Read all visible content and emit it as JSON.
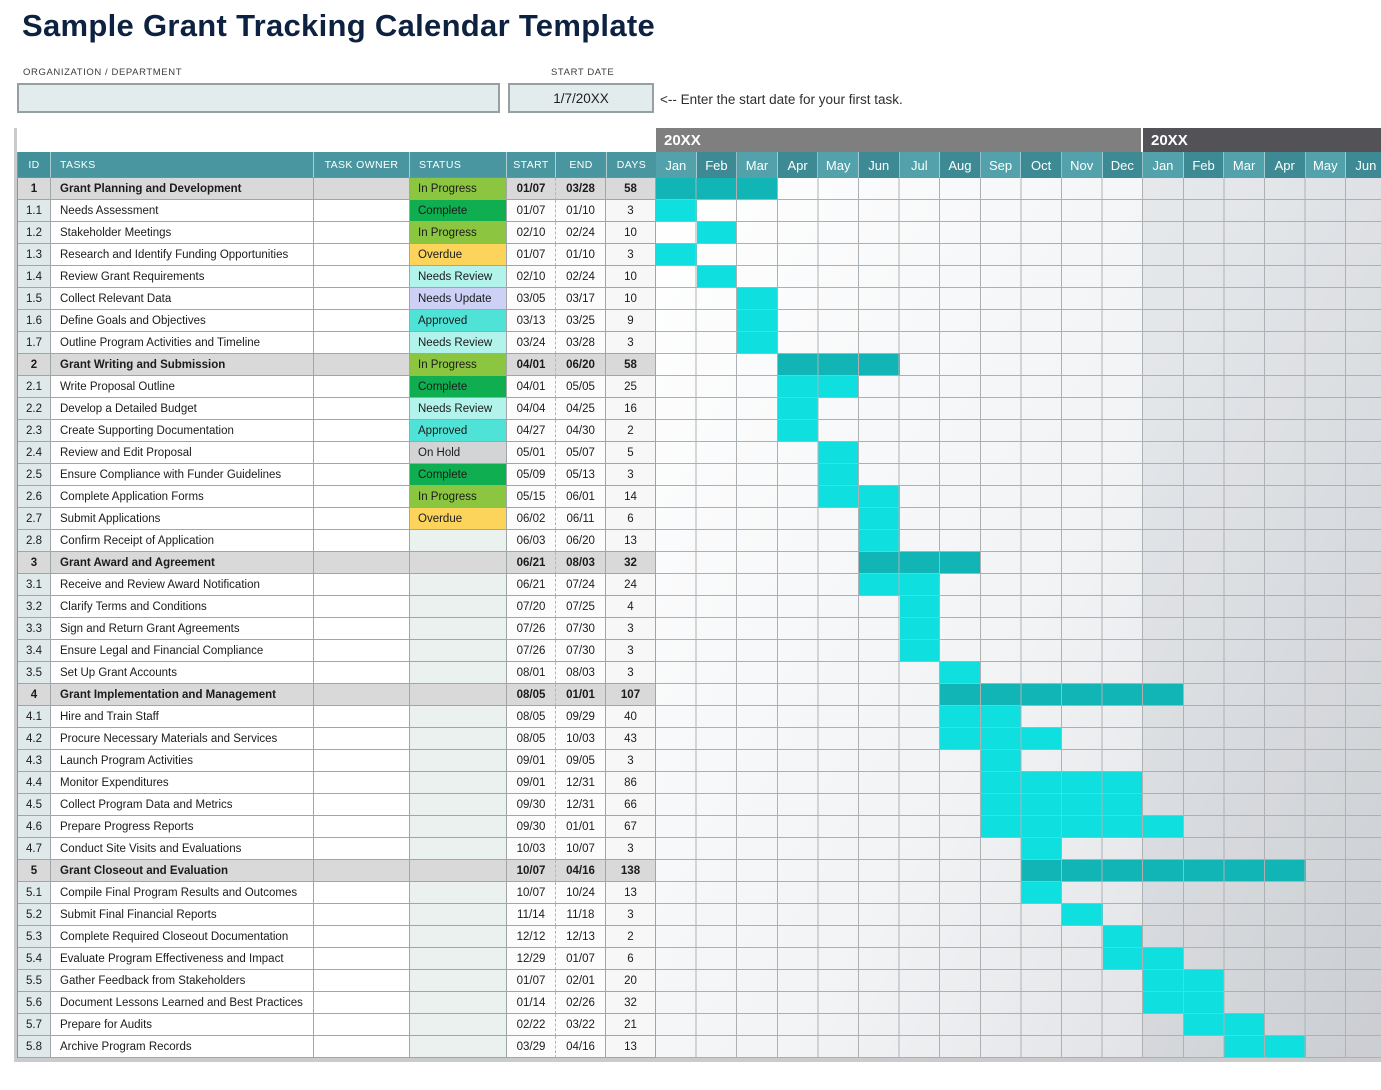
{
  "title": "Sample Grant Tracking Calendar Template",
  "form": {
    "org_label": "ORGANIZATION / DEPARTMENT",
    "org_value": "",
    "start_date_label": "START DATE",
    "start_date_value": "1/7/20XX",
    "hint": "<-- Enter the start date for your first task."
  },
  "table_headers": {
    "id": "ID",
    "tasks": "TASKS",
    "owner": "TASK OWNER",
    "status": "STATUS",
    "start": "START",
    "end": "END",
    "days": "DAYS"
  },
  "years": [
    {
      "label": "20XX",
      "months": [
        "Jan",
        "Feb",
        "Mar",
        "Apr",
        "May",
        "Jun",
        "Jul",
        "Aug",
        "Sep",
        "Oct",
        "Nov",
        "Dec"
      ]
    },
    {
      "label": "20XX",
      "months": [
        "Jan",
        "Feb",
        "Mar",
        "Apr",
        "May",
        "Jun"
      ]
    }
  ],
  "status_colors": {
    "In Progress": "#8cc640",
    "Complete": "#0fae50",
    "Overdue": "#fcd45c",
    "Needs Review": "#b2f4ec",
    "Needs Update": "#ccd1f5",
    "Approved": "#4fe3d7",
    "On Hold": "#d2d4d6"
  },
  "colors": {
    "section_bar": "#12b5b5",
    "task_bar": "#0fdfdf",
    "header_teal": "#4a96a0",
    "year1_band": "#7f7f7f",
    "year2_band": "#535357",
    "section_row": "#d9d9d9",
    "title_navy": "#0d2240"
  },
  "rows": [
    {
      "id": "1",
      "task": "Grant Planning and Development",
      "owner": "",
      "status": "In Progress",
      "start": "01/07",
      "end": "03/28",
      "days": "58",
      "section": true,
      "bar_months": [
        0,
        3
      ]
    },
    {
      "id": "1.1",
      "task": "Needs Assessment",
      "owner": "",
      "status": "Complete",
      "start": "01/07",
      "end": "01/10",
      "days": "3",
      "section": false,
      "bar_months": [
        0,
        1
      ]
    },
    {
      "id": "1.2",
      "task": "Stakeholder Meetings",
      "owner": "",
      "status": "In Progress",
      "start": "02/10",
      "end": "02/24",
      "days": "10",
      "section": false,
      "bar_months": [
        1,
        1
      ]
    },
    {
      "id": "1.3",
      "task": "Research and Identify Funding Opportunities",
      "owner": "",
      "status": "Overdue",
      "start": "01/07",
      "end": "01/10",
      "days": "3",
      "section": false,
      "bar_months": [
        0,
        1
      ]
    },
    {
      "id": "1.4",
      "task": "Review Grant Requirements",
      "owner": "",
      "status": "Needs Review",
      "start": "02/10",
      "end": "02/24",
      "days": "10",
      "section": false,
      "bar_months": [
        1,
        1
      ]
    },
    {
      "id": "1.5",
      "task": "Collect Relevant Data",
      "owner": "",
      "status": "Needs Update",
      "start": "03/05",
      "end": "03/17",
      "days": "10",
      "section": false,
      "bar_months": [
        2,
        1
      ]
    },
    {
      "id": "1.6",
      "task": "Define Goals and Objectives",
      "owner": "",
      "status": "Approved",
      "start": "03/13",
      "end": "03/25",
      "days": "9",
      "section": false,
      "bar_months": [
        2,
        1
      ]
    },
    {
      "id": "1.7",
      "task": "Outline Program Activities and Timeline",
      "owner": "",
      "status": "Needs Review",
      "start": "03/24",
      "end": "03/28",
      "days": "3",
      "section": false,
      "bar_months": [
        2,
        1
      ]
    },
    {
      "id": "2",
      "task": "Grant Writing and Submission",
      "owner": "",
      "status": "In Progress",
      "start": "04/01",
      "end": "06/20",
      "days": "58",
      "section": true,
      "bar_months": [
        3,
        3
      ]
    },
    {
      "id": "2.1",
      "task": "Write Proposal Outline",
      "owner": "",
      "status": "Complete",
      "start": "04/01",
      "end": "05/05",
      "days": "25",
      "section": false,
      "bar_months": [
        3,
        2
      ]
    },
    {
      "id": "2.2",
      "task": "Develop a Detailed Budget",
      "owner": "",
      "status": "Needs Review",
      "start": "04/04",
      "end": "04/25",
      "days": "16",
      "section": false,
      "bar_months": [
        3,
        1
      ]
    },
    {
      "id": "2.3",
      "task": "Create Supporting Documentation",
      "owner": "",
      "status": "Approved",
      "start": "04/27",
      "end": "04/30",
      "days": "2",
      "section": false,
      "bar_months": [
        3,
        1
      ]
    },
    {
      "id": "2.4",
      "task": "Review and Edit Proposal",
      "owner": "",
      "status": "On Hold",
      "start": "05/01",
      "end": "05/07",
      "days": "5",
      "section": false,
      "bar_months": [
        4,
        1
      ]
    },
    {
      "id": "2.5",
      "task": "Ensure Compliance with Funder Guidelines",
      "owner": "",
      "status": "Complete",
      "start": "05/09",
      "end": "05/13",
      "days": "3",
      "section": false,
      "bar_months": [
        4,
        1
      ]
    },
    {
      "id": "2.6",
      "task": "Complete Application Forms",
      "owner": "",
      "status": "In Progress",
      "start": "05/15",
      "end": "06/01",
      "days": "14",
      "section": false,
      "bar_months": [
        4,
        2
      ]
    },
    {
      "id": "2.7",
      "task": "Submit Applications",
      "owner": "",
      "status": "Overdue",
      "start": "06/02",
      "end": "06/11",
      "days": "6",
      "section": false,
      "bar_months": [
        5,
        1
      ]
    },
    {
      "id": "2.8",
      "task": "Confirm Receipt of Application",
      "owner": "",
      "status": "",
      "start": "06/03",
      "end": "06/20",
      "days": "13",
      "section": false,
      "bar_months": [
        5,
        1
      ]
    },
    {
      "id": "3",
      "task": "Grant Award and Agreement",
      "owner": "",
      "status": "",
      "start": "06/21",
      "end": "08/03",
      "days": "32",
      "section": true,
      "bar_months": [
        5,
        3
      ]
    },
    {
      "id": "3.1",
      "task": "Receive and Review Award Notification",
      "owner": "",
      "status": "",
      "start": "06/21",
      "end": "07/24",
      "days": "24",
      "section": false,
      "bar_months": [
        5,
        2
      ]
    },
    {
      "id": "3.2",
      "task": "Clarify Terms and Conditions",
      "owner": "",
      "status": "",
      "start": "07/20",
      "end": "07/25",
      "days": "4",
      "section": false,
      "bar_months": [
        6,
        1
      ]
    },
    {
      "id": "3.3",
      "task": "Sign and Return Grant Agreements",
      "owner": "",
      "status": "",
      "start": "07/26",
      "end": "07/30",
      "days": "3",
      "section": false,
      "bar_months": [
        6,
        1
      ]
    },
    {
      "id": "3.4",
      "task": "Ensure Legal and Financial Compliance",
      "owner": "",
      "status": "",
      "start": "07/26",
      "end": "07/30",
      "days": "3",
      "section": false,
      "bar_months": [
        6,
        1
      ]
    },
    {
      "id": "3.5",
      "task": "Set Up Grant Accounts",
      "owner": "",
      "status": "",
      "start": "08/01",
      "end": "08/03",
      "days": "3",
      "section": false,
      "bar_months": [
        7,
        1
      ]
    },
    {
      "id": "4",
      "task": "Grant Implementation and Management",
      "owner": "",
      "status": "",
      "start": "08/05",
      "end": "01/01",
      "days": "107",
      "section": true,
      "bar_months": [
        7,
        6
      ]
    },
    {
      "id": "4.1",
      "task": "Hire and Train Staff",
      "owner": "",
      "status": "",
      "start": "08/05",
      "end": "09/29",
      "days": "40",
      "section": false,
      "bar_months": [
        7,
        2
      ]
    },
    {
      "id": "4.2",
      "task": "Procure Necessary Materials and Services",
      "owner": "",
      "status": "",
      "start": "08/05",
      "end": "10/03",
      "days": "43",
      "section": false,
      "bar_months": [
        7,
        3
      ]
    },
    {
      "id": "4.3",
      "task": "Launch Program Activities",
      "owner": "",
      "status": "",
      "start": "09/01",
      "end": "09/05",
      "days": "3",
      "section": false,
      "bar_months": [
        8,
        1
      ]
    },
    {
      "id": "4.4",
      "task": "Monitor Expenditures",
      "owner": "",
      "status": "",
      "start": "09/01",
      "end": "12/31",
      "days": "86",
      "section": false,
      "bar_months": [
        8,
        4
      ]
    },
    {
      "id": "4.5",
      "task": "Collect Program Data and Metrics",
      "owner": "",
      "status": "",
      "start": "09/30",
      "end": "12/31",
      "days": "66",
      "section": false,
      "bar_months": [
        8,
        4
      ]
    },
    {
      "id": "4.6",
      "task": "Prepare Progress Reports",
      "owner": "",
      "status": "",
      "start": "09/30",
      "end": "01/01",
      "days": "67",
      "section": false,
      "bar_months": [
        8,
        5
      ]
    },
    {
      "id": "4.7",
      "task": "Conduct Site Visits and Evaluations",
      "owner": "",
      "status": "",
      "start": "10/03",
      "end": "10/07",
      "days": "3",
      "section": false,
      "bar_months": [
        9,
        1
      ]
    },
    {
      "id": "5",
      "task": "Grant Closeout and Evaluation",
      "owner": "",
      "status": "",
      "start": "10/07",
      "end": "04/16",
      "days": "138",
      "section": true,
      "bar_months": [
        9,
        7
      ]
    },
    {
      "id": "5.1",
      "task": "Compile Final Program Results and Outcomes",
      "owner": "",
      "status": "",
      "start": "10/07",
      "end": "10/24",
      "days": "13",
      "section": false,
      "bar_months": [
        9,
        1
      ]
    },
    {
      "id": "5.2",
      "task": "Submit Final Financial Reports",
      "owner": "",
      "status": "",
      "start": "11/14",
      "end": "11/18",
      "days": "3",
      "section": false,
      "bar_months": [
        10,
        1
      ]
    },
    {
      "id": "5.3",
      "task": "Complete Required Closeout Documentation",
      "owner": "",
      "status": "",
      "start": "12/12",
      "end": "12/13",
      "days": "2",
      "section": false,
      "bar_months": [
        11,
        1
      ]
    },
    {
      "id": "5.4",
      "task": "Evaluate Program Effectiveness and Impact",
      "owner": "",
      "status": "",
      "start": "12/29",
      "end": "01/07",
      "days": "6",
      "section": false,
      "bar_months": [
        11,
        2
      ]
    },
    {
      "id": "5.5",
      "task": "Gather Feedback from Stakeholders",
      "owner": "",
      "status": "",
      "start": "01/07",
      "end": "02/01",
      "days": "20",
      "section": false,
      "bar_months": [
        12,
        2
      ]
    },
    {
      "id": "5.6",
      "task": "Document Lessons Learned and Best Practices",
      "owner": "",
      "status": "",
      "start": "01/14",
      "end": "02/26",
      "days": "32",
      "section": false,
      "bar_months": [
        12,
        2
      ]
    },
    {
      "id": "5.7",
      "task": "Prepare for Audits",
      "owner": "",
      "status": "",
      "start": "02/22",
      "end": "03/22",
      "days": "21",
      "section": false,
      "bar_months": [
        13,
        2
      ]
    },
    {
      "id": "5.8",
      "task": "Archive Program Records",
      "owner": "",
      "status": "",
      "start": "03/29",
      "end": "04/16",
      "days": "13",
      "section": false,
      "bar_months": [
        14,
        2
      ]
    }
  ]
}
